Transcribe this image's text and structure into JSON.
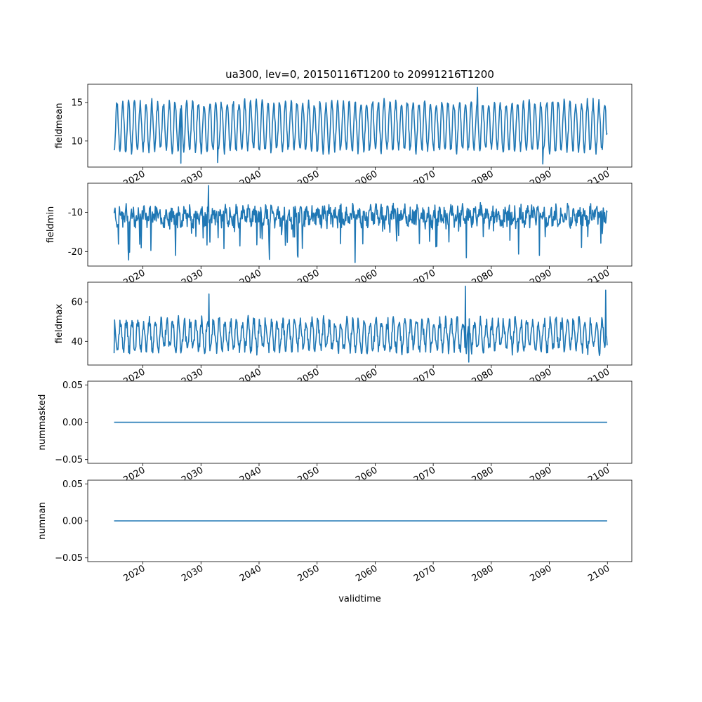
{
  "chart_data": [
    {
      "type": "line",
      "title": "ua300, lev=0, 20150116T1200 to 20991216T1200",
      "ylabel": "fieldmean",
      "xlabel": "",
      "xlim": [
        2010.5,
        2104.2
      ],
      "ylim": [
        6.6,
        17.4
      ],
      "yticks": [
        10,
        15
      ],
      "xticks": [
        2020,
        2030,
        2040,
        2050,
        2060,
        2070,
        2080,
        2090,
        2100
      ],
      "series": [
        {
          "color": "#1f77b4",
          "x_start": 2015.04,
          "x_step": 0.08333,
          "seasonal": {
            "mean": 11.9,
            "amplitude": 3.1,
            "phase_month": 6,
            "noise": 0.55,
            "seed": 11
          },
          "endpoints": {
            "first": 8.8,
            "last": 11.0
          },
          "extremes": [
            {
              "x": 2077.6,
              "y": 17.0
            },
            {
              "x": 2088.9,
              "y": 7.0
            },
            {
              "x": 2026.5,
              "y": 7.1
            },
            {
              "x": 2032.9,
              "y": 7.2
            }
          ]
        }
      ]
    },
    {
      "type": "line",
      "ylabel": "fieldmin",
      "xlabel": "",
      "xlim": [
        2010.5,
        2104.2
      ],
      "ylim": [
        -23.7,
        -2.6
      ],
      "yticks": [
        -20,
        -10
      ],
      "xticks": [
        2020,
        2030,
        2040,
        2050,
        2060,
        2070,
        2080,
        2090,
        2100
      ],
      "series": [
        {
          "color": "#1f77b4",
          "x_start": 2015.04,
          "x_step": 0.08333,
          "seasonal": {
            "mean": -10.9,
            "amplitude": 1.2,
            "phase_month": 1,
            "noise": 2.2,
            "seed": 23,
            "spike_prob": 0.06,
            "spike_depth": 6
          },
          "endpoints": {
            "first": -10.2,
            "last": -10.0
          },
          "extremes": [
            {
              "x": 2031.3,
              "y": -3.2
            },
            {
              "x": 2056.5,
              "y": -22.8
            },
            {
              "x": 2041.8,
              "y": -22.0
            },
            {
              "x": 2025.6,
              "y": -21.0
            },
            {
              "x": 2088.3,
              "y": -21.0
            }
          ]
        }
      ]
    },
    {
      "type": "line",
      "ylabel": "fieldmax",
      "xlabel": "",
      "xlim": [
        2010.5,
        2104.2
      ],
      "ylim": [
        28,
        70
      ],
      "yticks": [
        40,
        60
      ],
      "xticks": [
        2020,
        2030,
        2040,
        2050,
        2060,
        2070,
        2080,
        2090,
        2100
      ],
      "series": [
        {
          "color": "#1f77b4",
          "x_start": 2015.04,
          "x_step": 0.08333,
          "seasonal": {
            "mean": 43,
            "amplitude": 7,
            "phase_month": 1,
            "noise": 3.2,
            "seed": 37
          },
          "endpoints": {
            "first": 34,
            "last": 38
          },
          "extremes": [
            {
              "x": 2075.5,
              "y": 68
            },
            {
              "x": 2099.7,
              "y": 66
            },
            {
              "x": 2076.1,
              "y": 29.5
            },
            {
              "x": 2031.4,
              "y": 64
            }
          ]
        }
      ]
    },
    {
      "type": "line",
      "ylabel": "nummasked",
      "xlabel": "",
      "xlim": [
        2010.5,
        2104.2
      ],
      "ylim": [
        -0.055,
        0.055
      ],
      "yticks": [
        -0.05,
        0.0,
        0.05
      ],
      "ytick_labels": [
        "−0.05",
        "0.00",
        "0.05"
      ],
      "xticks": [
        2020,
        2030,
        2040,
        2050,
        2060,
        2070,
        2080,
        2090,
        2100
      ],
      "series": [
        {
          "color": "#1f77b4",
          "x": [
            2015.04,
            2099.96
          ],
          "y": [
            0,
            0
          ]
        }
      ]
    },
    {
      "type": "line",
      "ylabel": "numnan",
      "xlabel": "validtime",
      "xlim": [
        2010.5,
        2104.2
      ],
      "ylim": [
        -0.055,
        0.055
      ],
      "yticks": [
        -0.05,
        0.0,
        0.05
      ],
      "ytick_labels": [
        "−0.05",
        "0.00",
        "0.05"
      ],
      "xticks": [
        2020,
        2030,
        2040,
        2050,
        2060,
        2070,
        2080,
        2090,
        2100
      ],
      "series": [
        {
          "color": "#1f77b4",
          "x": [
            2015.04,
            2099.96
          ],
          "y": [
            0,
            0
          ]
        }
      ]
    }
  ]
}
